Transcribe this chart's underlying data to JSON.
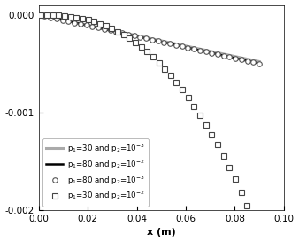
{
  "xlim": [
    0.0,
    0.1
  ],
  "ylim": [
    -0.002,
    0.0001
  ],
  "xlabel": "x (m)",
  "yticks": [
    0.0,
    -0.001,
    -0.002
  ],
  "xticks": [
    0.0,
    0.02,
    0.04,
    0.06,
    0.08,
    0.1
  ],
  "legend_entries": [
    "p$_1$=30 and p$_2$=10$^{-3}$",
    "p$_1$=80 and p$_2$=10$^{-3}$",
    "p$_1$=30 and p$_2$=10$^{-2}$",
    "p$_1$=80 and p$_2$=10$^{-2}$"
  ],
  "background_color": "#ffffff",
  "curve1": {
    "end_val": -0.00048,
    "color": "#aaaaaa",
    "lw": 2.2
  },
  "curve2": {
    "end_val": -0.0005,
    "color": "#888888",
    "lw": 0.8
  },
  "curve3_x_end": 0.085,
  "curve3_end_val": -0.00195,
  "curve3_power": 2.5,
  "curve4": {
    "end_val": -0.0005,
    "color": "#000000",
    "lw": 1.8
  }
}
